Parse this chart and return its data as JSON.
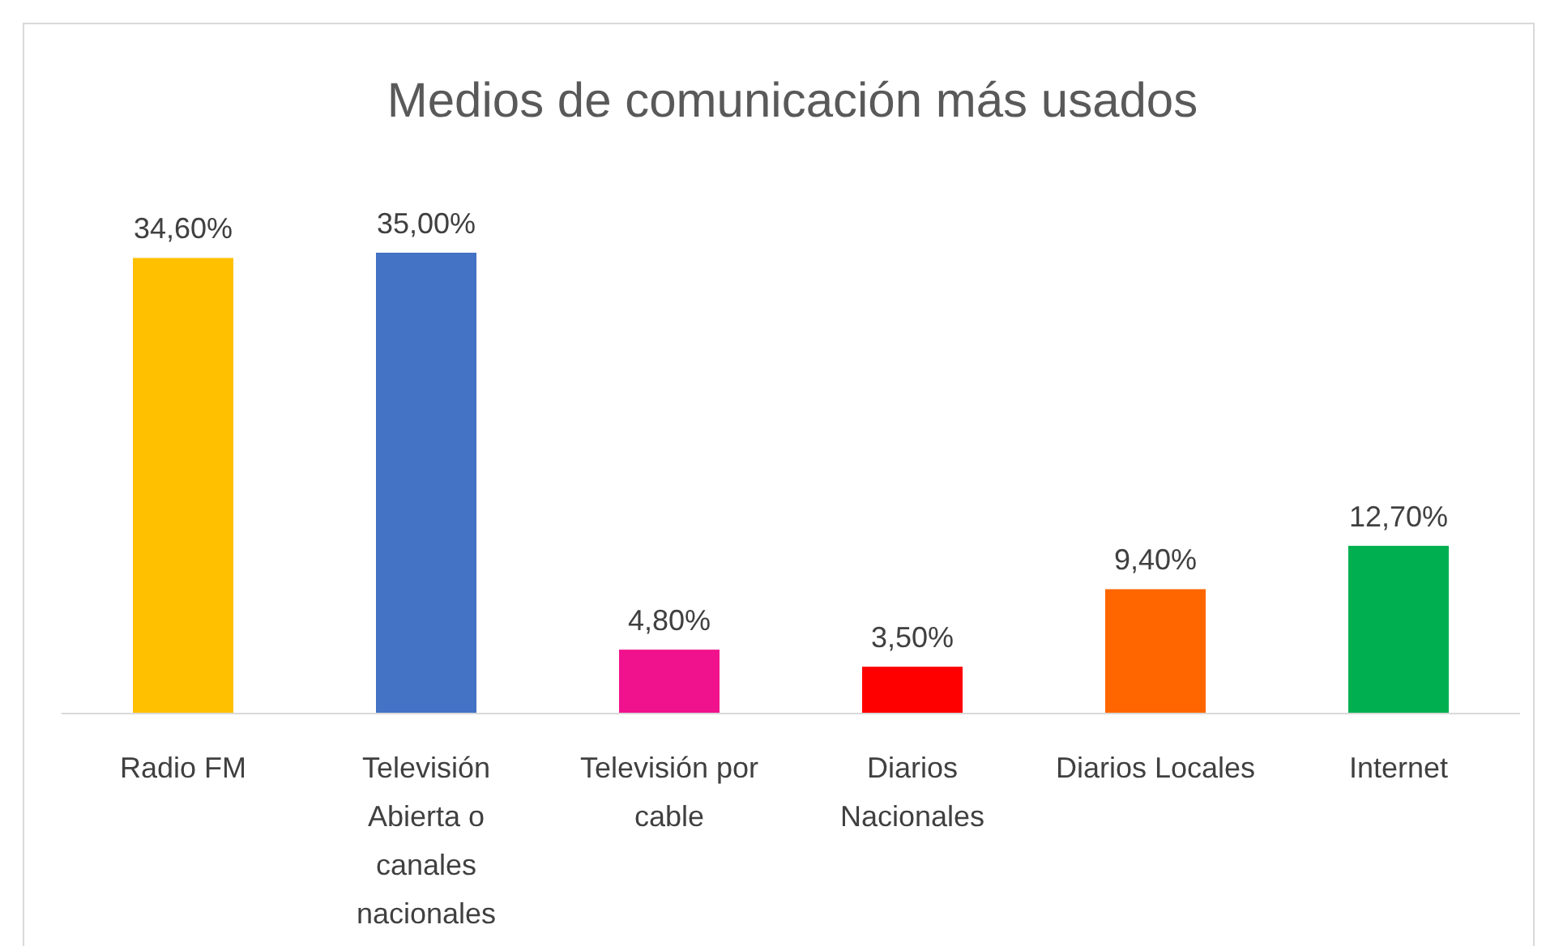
{
  "chart_data": {
    "type": "bar",
    "title": "Medios de comunicación más usados",
    "categories": [
      "Radio FM",
      "Televisión Abierta o canales nacionales",
      "Televisión por cable",
      "Diarios Nacionales",
      "Diarios Locales",
      "Internet"
    ],
    "values": [
      34.6,
      35,
      4.8,
      3.5,
      9.4,
      12.7
    ],
    "colors": [
      "#ffc000",
      "#4472c4",
      "#f0128c",
      "#ff0000",
      "#ff6600",
      "#00b050"
    ],
    "value_labels": [
      "34,60%",
      "35,00%",
      "4,80%",
      "3,50%",
      "9,40%",
      "12,70%"
    ]
  }
}
